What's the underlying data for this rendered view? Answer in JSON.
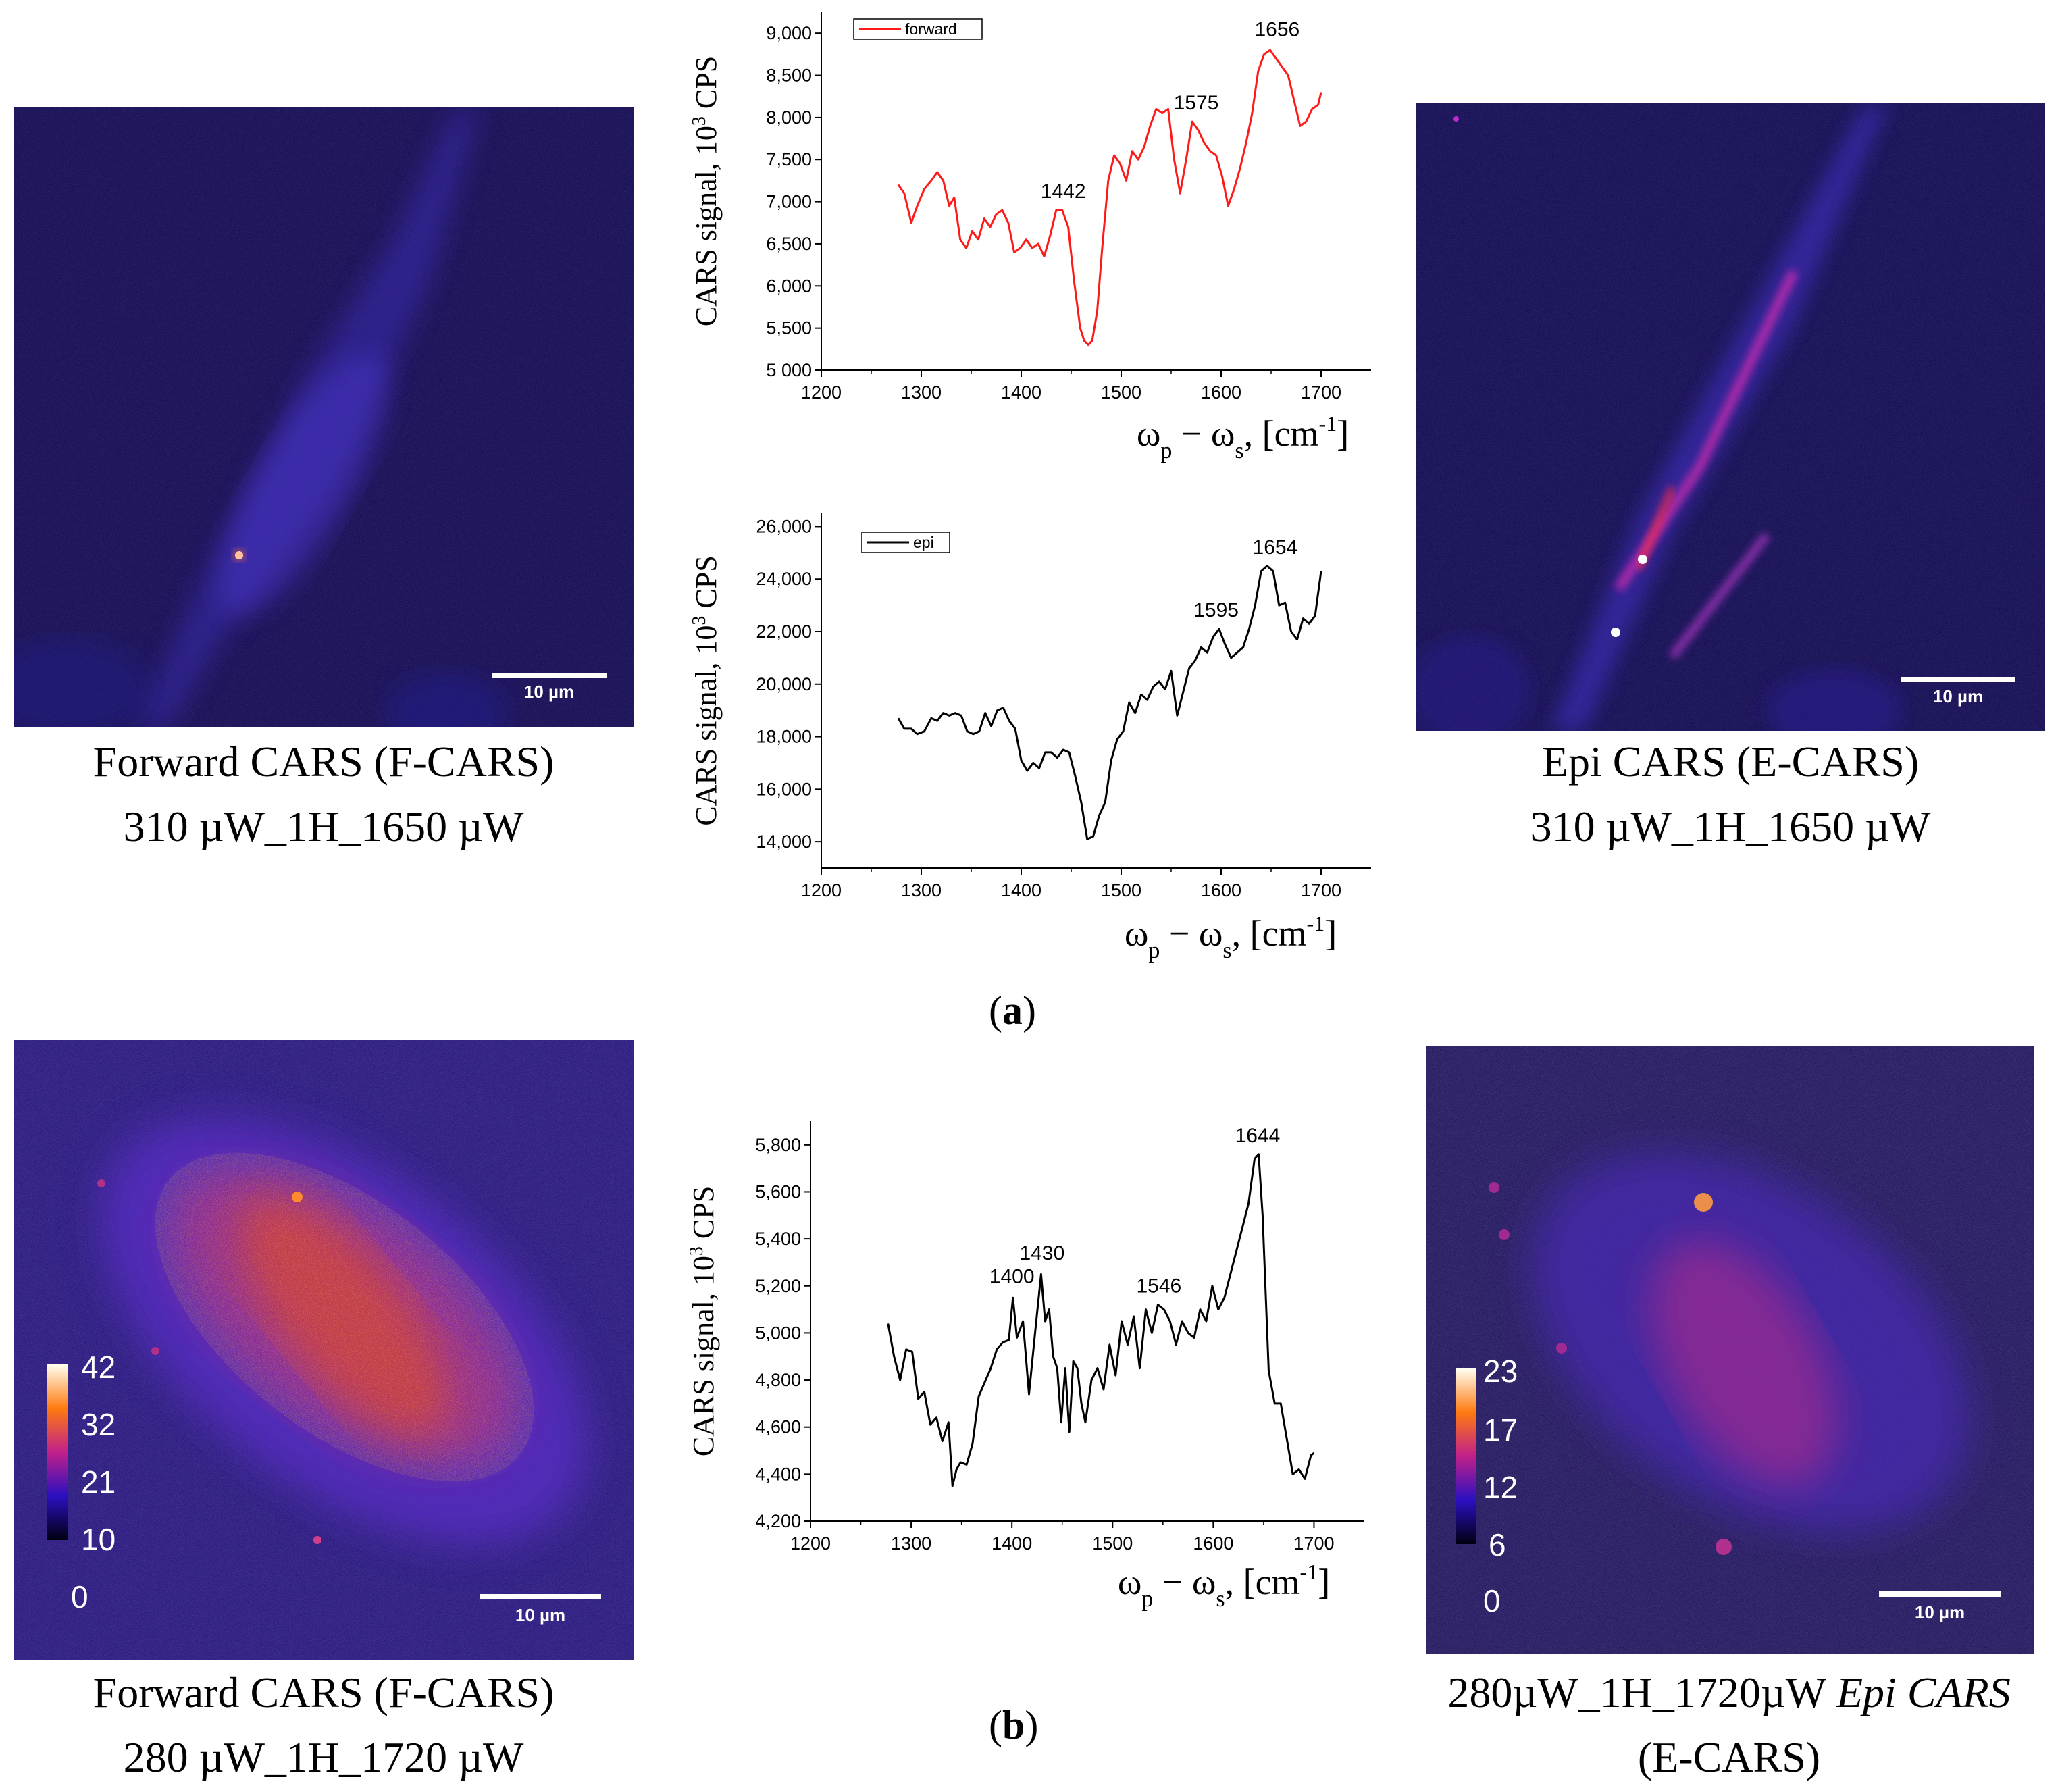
{
  "panel_a": {
    "label": "a",
    "left_caption": [
      "Forward CARS (F-CARS)",
      "310 µW_1H_1650 µW"
    ],
    "right_caption": [
      "Epi CARS (E-CARS)",
      "310 µW_1H_1650 µW"
    ],
    "left_scalebar": "10 µm",
    "right_scalebar": "10 µm"
  },
  "panel_b": {
    "label": "b",
    "left_caption": [
      "Forward CARS (F-CARS)",
      "280 µW_1H_1720 µW"
    ],
    "right_caption_plain": "280µW_1H_1720µW ",
    "right_caption_italic": "Epi CARS",
    "right_caption_line2": "(E-CARS)",
    "left_scalebar": "10 µm",
    "right_scalebar": "10 µm",
    "left_colorbar": [
      "42",
      "32",
      "21",
      "10",
      "0"
    ],
    "right_colorbar": [
      "23",
      "17",
      "12",
      "6",
      "0"
    ]
  },
  "colors": {
    "micro_bg": "#0f0a4a",
    "forward_line": "#ff1a1a",
    "epi_line": "#000000"
  },
  "chart_data": [
    {
      "id": "forward",
      "type": "line",
      "legend": "forward",
      "ylabel": "CARS signal, 10",
      "ylabel_sup": "3",
      "ylabel_tail": " CPS",
      "xlabel": "ω",
      "xlabel_p": "p",
      "xlabel_mid": " − ω",
      "xlabel_s": "s",
      "xlabel_tail": ", [cm",
      "xlabel_sup": "-1",
      "xlabel_end": "]",
      "xlim": [
        1200,
        1750
      ],
      "ylim": [
        5000,
        9250
      ],
      "xticks": [
        1200,
        1300,
        1400,
        1500,
        1600,
        1700
      ],
      "xtick_labels": [
        "1200",
        "1300",
        "1400",
        "1500",
        "1600",
        "1700"
      ],
      "yticks": [
        5000,
        5500,
        6000,
        6500,
        7000,
        7500,
        8000,
        8500,
        9000
      ],
      "ytick_labels": [
        "5 000",
        "5,500",
        "6,000",
        "6,500",
        "7,000",
        "7,500",
        "8,000",
        "8,500",
        "9,000"
      ],
      "annotations": [
        {
          "x": 1442,
          "y": 6900,
          "text": "1442"
        },
        {
          "x": 1575,
          "y": 7950,
          "text": "1575"
        },
        {
          "x": 1656,
          "y": 8820,
          "text": "1656"
        }
      ],
      "x": [
        1277,
        1283,
        1290,
        1296,
        1303,
        1310,
        1316,
        1322,
        1328,
        1333,
        1339,
        1345,
        1351,
        1357,
        1363,
        1369,
        1375,
        1381,
        1387,
        1393,
        1399,
        1405,
        1411,
        1417,
        1423,
        1429,
        1435,
        1441,
        1447,
        1453,
        1459,
        1463,
        1467,
        1471,
        1476,
        1481,
        1487,
        1493,
        1499,
        1505,
        1511,
        1517,
        1523,
        1529,
        1535,
        1541,
        1547,
        1553,
        1559,
        1565,
        1571,
        1577,
        1583,
        1589,
        1595,
        1601,
        1607,
        1613,
        1619,
        1625,
        1631,
        1637,
        1643,
        1649,
        1655,
        1661,
        1667,
        1673,
        1679,
        1685,
        1691,
        1697,
        1700
      ],
      "y": [
        7200,
        7100,
        6750,
        6950,
        7150,
        7250,
        7350,
        7250,
        6950,
        7050,
        6550,
        6450,
        6650,
        6550,
        6800,
        6700,
        6850,
        6900,
        6750,
        6400,
        6450,
        6550,
        6450,
        6500,
        6350,
        6600,
        6900,
        6900,
        6700,
        6050,
        5500,
        5350,
        5300,
        5350,
        5700,
        6450,
        7250,
        7550,
        7450,
        7250,
        7600,
        7500,
        7650,
        7900,
        8100,
        8050,
        8100,
        7500,
        7100,
        7500,
        7950,
        7850,
        7700,
        7600,
        7550,
        7300,
        6950,
        7150,
        7400,
        7700,
        8050,
        8550,
        8750,
        8800,
        8700,
        8600,
        8500,
        8200,
        7900,
        7950,
        8100,
        8150,
        8300
      ]
    },
    {
      "id": "epi",
      "type": "line",
      "legend": "epi",
      "ylabel": "CARS signal, 10",
      "ylabel_sup": "3",
      "ylabel_tail": " CPS",
      "xlabel": "ω",
      "xlabel_p": "p",
      "xlabel_mid": " − ω",
      "xlabel_s": "s",
      "xlabel_tail": ", [cm",
      "xlabel_sup": "-1",
      "xlabel_end": "]",
      "xlim": [
        1200,
        1750
      ],
      "ylim": [
        13000,
        26500
      ],
      "xticks": [
        1200,
        1300,
        1400,
        1500,
        1600,
        1700
      ],
      "xtick_labels": [
        "1200",
        "1300",
        "1400",
        "1500",
        "1600",
        "1700"
      ],
      "yticks": [
        14000,
        16000,
        18000,
        20000,
        22000,
        24000,
        26000
      ],
      "ytick_labels": [
        "14,000",
        "16,000",
        "18,000",
        "20,000",
        "22,000",
        "24,000",
        "26,000"
      ],
      "annotations": [
        {
          "x": 1595,
          "y": 22100,
          "text": "1595"
        },
        {
          "x": 1654,
          "y": 24500,
          "text": "1654"
        }
      ],
      "x": [
        1277,
        1283,
        1290,
        1296,
        1303,
        1310,
        1316,
        1322,
        1328,
        1334,
        1340,
        1346,
        1352,
        1358,
        1364,
        1370,
        1376,
        1382,
        1388,
        1394,
        1400,
        1406,
        1412,
        1418,
        1424,
        1430,
        1436,
        1442,
        1448,
        1454,
        1460,
        1466,
        1472,
        1478,
        1484,
        1490,
        1496,
        1502,
        1508,
        1514,
        1520,
        1526,
        1532,
        1538,
        1544,
        1550,
        1556,
        1562,
        1568,
        1574,
        1580,
        1586,
        1592,
        1598,
        1604,
        1610,
        1616,
        1622,
        1628,
        1634,
        1640,
        1646,
        1652,
        1658,
        1664,
        1670,
        1676,
        1682,
        1688,
        1694,
        1700
      ],
      "y": [
        18700,
        18300,
        18300,
        18100,
        18200,
        18700,
        18600,
        18900,
        18800,
        18900,
        18800,
        18200,
        18100,
        18200,
        18900,
        18400,
        19000,
        19100,
        18600,
        18300,
        17100,
        16700,
        17000,
        16800,
        17400,
        17400,
        17200,
        17500,
        17400,
        16500,
        15500,
        14100,
        14200,
        15000,
        15500,
        17100,
        17900,
        18200,
        19300,
        18900,
        19600,
        19400,
        19900,
        20100,
        19800,
        20500,
        18800,
        19700,
        20600,
        20900,
        21400,
        21200,
        21800,
        22100,
        21500,
        21000,
        21200,
        21400,
        22100,
        23000,
        24300,
        24500,
        24300,
        23000,
        23100,
        22000,
        21700,
        22500,
        22300,
        22600,
        24300
      ]
    },
    {
      "id": "b_forward",
      "type": "line",
      "legend": "",
      "ylabel": "CARS signal, 10",
      "ylabel_sup": "3",
      "ylabel_tail": " CPS",
      "xlabel": "ω",
      "xlabel_p": "p",
      "xlabel_mid": " − ω",
      "xlabel_s": "s",
      "xlabel_tail": ", [cm",
      "xlabel_sup": "-1",
      "xlabel_end": "]",
      "xlim": [
        1200,
        1750
      ],
      "ylim": [
        4200,
        5900
      ],
      "xticks": [
        1200,
        1300,
        1400,
        1500,
        1600,
        1700
      ],
      "xtick_labels": [
        "1200",
        "1300",
        "1400",
        "1500",
        "1600",
        "1700"
      ],
      "yticks": [
        4200,
        4400,
        4600,
        4800,
        5000,
        5200,
        5400,
        5600,
        5800
      ],
      "ytick_labels": [
        "4,200",
        "4,400",
        "4,600",
        "4,800",
        "5,000",
        "5,200",
        "5,400",
        "5,600",
        "5,800"
      ],
      "annotations": [
        {
          "x": 1400,
          "y": 5160,
          "text": "1400"
        },
        {
          "x": 1430,
          "y": 5260,
          "text": "1430"
        },
        {
          "x": 1546,
          "y": 5120,
          "text": "1546"
        },
        {
          "x": 1644,
          "y": 5760,
          "text": "1644"
        }
      ],
      "x": [
        1277,
        1283,
        1289,
        1295,
        1301,
        1307,
        1313,
        1319,
        1325,
        1331,
        1337,
        1341,
        1345,
        1349,
        1355,
        1361,
        1367,
        1373,
        1379,
        1385,
        1391,
        1397,
        1401,
        1405,
        1411,
        1417,
        1423,
        1429,
        1433,
        1437,
        1441,
        1445,
        1449,
        1453,
        1457,
        1461,
        1465,
        1469,
        1473,
        1479,
        1485,
        1491,
        1497,
        1503,
        1509,
        1515,
        1521,
        1527,
        1533,
        1539,
        1545,
        1551,
        1557,
        1563,
        1569,
        1575,
        1581,
        1587,
        1593,
        1599,
        1605,
        1611,
        1617,
        1623,
        1629,
        1635,
        1641,
        1645,
        1649,
        1655,
        1661,
        1667,
        1673,
        1679,
        1685,
        1691,
        1697,
        1700
      ],
      "y": [
        5040,
        4900,
        4800,
        4930,
        4920,
        4720,
        4750,
        4610,
        4640,
        4540,
        4620,
        4350,
        4420,
        4450,
        4440,
        4530,
        4730,
        4790,
        4850,
        4930,
        4960,
        4970,
        5150,
        4980,
        5050,
        4740,
        5000,
        5250,
        5050,
        5100,
        4900,
        4850,
        4620,
        4850,
        4580,
        4880,
        4850,
        4700,
        4620,
        4800,
        4850,
        4760,
        4950,
        4820,
        5050,
        4950,
        5070,
        4850,
        5100,
        5000,
        5120,
        5100,
        5050,
        4950,
        5050,
        5000,
        4980,
        5100,
        5050,
        5200,
        5100,
        5150,
        5250,
        5350,
        5450,
        5550,
        5740,
        5760,
        5500,
        4840,
        4700,
        4700,
        4550,
        4400,
        4420,
        4380,
        4480,
        4490
      ]
    }
  ]
}
